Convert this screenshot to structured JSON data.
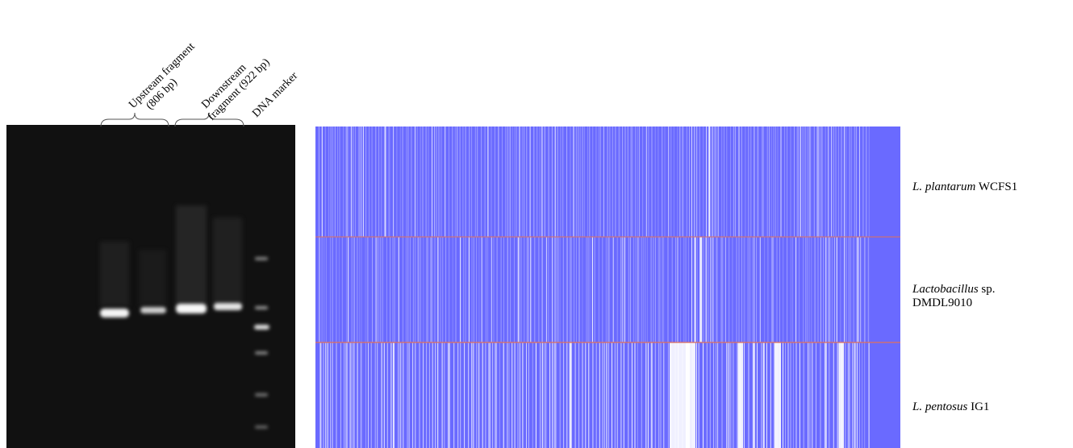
{
  "gel": {
    "lane_labels": [
      {
        "line1": "Upstream fragment",
        "line2": "(806 bp)"
      },
      {
        "line1": "Downstream",
        "line2": "fragment (922 bp)"
      },
      {
        "line1": "DNA marker",
        "line2": ""
      }
    ],
    "colors": {
      "background": "#0d0d0d",
      "band": "#f2f2f2"
    }
  },
  "alignment": {
    "colors": {
      "base": "#6a6aff",
      "light": "#aaaaff",
      "white": "#ffffff",
      "separator": "#e0705a"
    },
    "rows": [
      {
        "genus": "L. plantarum",
        "strain": "WCFS1"
      },
      {
        "genus": "Lactobacillus",
        "sp": "sp.",
        "strain": "DMDL9010"
      },
      {
        "genus": "L. pentosus",
        "strain": "IG1"
      }
    ]
  }
}
